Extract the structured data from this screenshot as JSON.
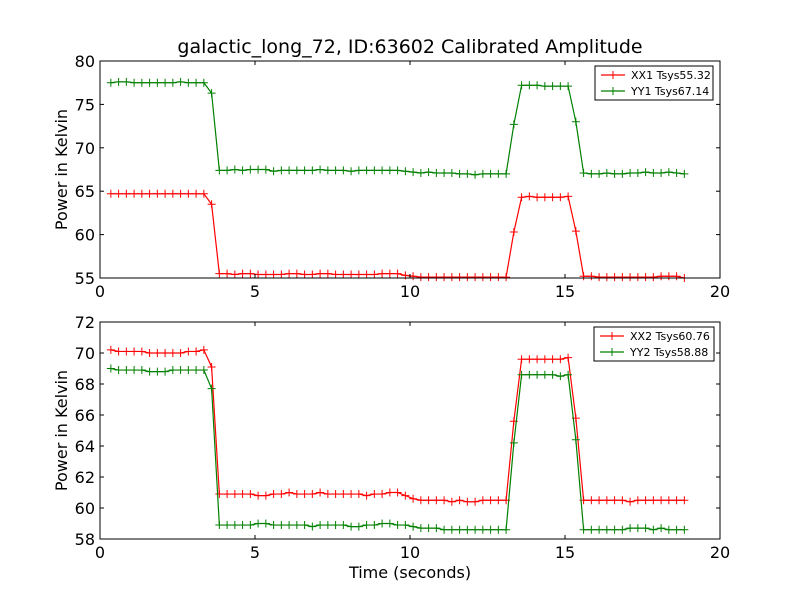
{
  "chart_data": [
    {
      "type": "line",
      "title": "galactic_long_72, ID:63602 Calibrated Amplitude",
      "xlabel": "",
      "ylabel": "Power in Kelvin",
      "xlim": [
        0,
        20
      ],
      "ylim": [
        55,
        80
      ],
      "xticks": [
        0,
        5,
        10,
        15,
        20
      ],
      "yticks": [
        55,
        60,
        65,
        70,
        75,
        80
      ],
      "legend_position": "top-right",
      "series": [
        {
          "name": "XX1 Tsys55.32",
          "color": "#ff0000",
          "x": [
            0.35,
            0.6,
            0.85,
            1.1,
            1.35,
            1.6,
            1.85,
            2.1,
            2.35,
            2.6,
            2.85,
            3.1,
            3.35,
            3.6,
            3.85,
            4.1,
            4.35,
            4.6,
            4.85,
            5.1,
            5.35,
            5.6,
            5.85,
            6.1,
            6.35,
            6.6,
            6.85,
            7.1,
            7.35,
            7.6,
            7.85,
            8.1,
            8.35,
            8.6,
            8.85,
            9.1,
            9.35,
            9.6,
            9.85,
            10.1,
            10.35,
            10.6,
            10.85,
            11.1,
            11.35,
            11.6,
            11.85,
            12.1,
            12.35,
            12.6,
            12.85,
            13.1,
            13.35,
            13.6,
            13.85,
            14.1,
            14.35,
            14.6,
            14.85,
            15.1,
            15.35,
            15.6,
            15.85,
            16.1,
            16.35,
            16.6,
            16.85,
            17.1,
            17.35,
            17.6,
            17.85,
            18.1,
            18.35,
            18.6,
            18.85
          ],
          "y": [
            64.7,
            64.7,
            64.7,
            64.7,
            64.7,
            64.7,
            64.7,
            64.7,
            64.7,
            64.7,
            64.7,
            64.7,
            64.7,
            63.5,
            55.5,
            55.5,
            55.4,
            55.5,
            55.5,
            55.4,
            55.4,
            55.4,
            55.4,
            55.5,
            55.5,
            55.4,
            55.4,
            55.5,
            55.5,
            55.4,
            55.4,
            55.4,
            55.4,
            55.4,
            55.4,
            55.5,
            55.5,
            55.5,
            55.3,
            55.2,
            55.1,
            55.1,
            55.1,
            55.1,
            55.1,
            55.1,
            55.1,
            55.1,
            55.1,
            55.1,
            55.1,
            55.1,
            60.3,
            64.3,
            64.4,
            64.3,
            64.3,
            64.3,
            64.3,
            64.4,
            60.4,
            55.2,
            55.2,
            55.1,
            55.1,
            55.1,
            55.1,
            55.1,
            55.1,
            55.1,
            55.1,
            55.2,
            55.2,
            55.2,
            55.0
          ]
        },
        {
          "name": "YY1 Tsys67.14",
          "color": "#008000",
          "x": [
            0.35,
            0.6,
            0.85,
            1.1,
            1.35,
            1.6,
            1.85,
            2.1,
            2.35,
            2.6,
            2.85,
            3.1,
            3.35,
            3.6,
            3.85,
            4.1,
            4.35,
            4.6,
            4.85,
            5.1,
            5.35,
            5.6,
            5.85,
            6.1,
            6.35,
            6.6,
            6.85,
            7.1,
            7.35,
            7.6,
            7.85,
            8.1,
            8.35,
            8.6,
            8.85,
            9.1,
            9.35,
            9.6,
            9.85,
            10.1,
            10.35,
            10.6,
            10.85,
            11.1,
            11.35,
            11.6,
            11.85,
            12.1,
            12.35,
            12.6,
            12.85,
            13.1,
            13.35,
            13.6,
            13.85,
            14.1,
            14.35,
            14.6,
            14.85,
            15.1,
            15.35,
            15.6,
            15.85,
            16.1,
            16.35,
            16.6,
            16.85,
            17.1,
            17.35,
            17.6,
            17.85,
            18.1,
            18.35,
            18.6,
            18.85
          ],
          "y": [
            77.5,
            77.6,
            77.6,
            77.5,
            77.5,
            77.5,
            77.5,
            77.5,
            77.5,
            77.6,
            77.5,
            77.5,
            77.5,
            76.3,
            67.4,
            67.4,
            67.5,
            67.4,
            67.5,
            67.5,
            67.5,
            67.3,
            67.4,
            67.4,
            67.4,
            67.4,
            67.4,
            67.5,
            67.4,
            67.4,
            67.4,
            67.3,
            67.4,
            67.4,
            67.4,
            67.4,
            67.4,
            67.4,
            67.3,
            67.2,
            67.1,
            67.2,
            67.1,
            67.1,
            67.1,
            67.0,
            67.0,
            66.9,
            67.0,
            67.0,
            67.0,
            67.0,
            72.7,
            77.2,
            77.2,
            77.2,
            77.1,
            77.1,
            77.1,
            77.1,
            73.0,
            67.1,
            67.0,
            67.0,
            67.1,
            67.0,
            67.0,
            67.1,
            67.1,
            67.2,
            67.1,
            67.1,
            67.2,
            67.1,
            67.0
          ]
        }
      ]
    },
    {
      "type": "line",
      "title": "",
      "xlabel": "Time (seconds)",
      "ylabel": "Power in Kelvin",
      "xlim": [
        0,
        20
      ],
      "ylim": [
        58,
        72
      ],
      "xticks": [
        0,
        5,
        10,
        15,
        20
      ],
      "yticks": [
        58,
        60,
        62,
        64,
        66,
        68,
        70,
        72
      ],
      "legend_position": "top-right",
      "series": [
        {
          "name": "XX2 Tsys60.76",
          "color": "#ff0000",
          "x": [
            0.35,
            0.6,
            0.85,
            1.1,
            1.35,
            1.6,
            1.85,
            2.1,
            2.35,
            2.6,
            2.85,
            3.1,
            3.35,
            3.6,
            3.85,
            4.1,
            4.35,
            4.6,
            4.85,
            5.1,
            5.35,
            5.6,
            5.85,
            6.1,
            6.35,
            6.6,
            6.85,
            7.1,
            7.35,
            7.6,
            7.85,
            8.1,
            8.35,
            8.6,
            8.85,
            9.1,
            9.35,
            9.6,
            9.85,
            10.1,
            10.35,
            10.6,
            10.85,
            11.1,
            11.35,
            11.6,
            11.85,
            12.1,
            12.35,
            12.6,
            12.85,
            13.1,
            13.35,
            13.6,
            13.85,
            14.1,
            14.35,
            14.6,
            14.85,
            15.1,
            15.35,
            15.6,
            15.85,
            16.1,
            16.35,
            16.6,
            16.85,
            17.1,
            17.35,
            17.6,
            17.85,
            18.1,
            18.35,
            18.6,
            18.85
          ],
          "y": [
            70.2,
            70.1,
            70.1,
            70.1,
            70.1,
            70.0,
            70.0,
            70.0,
            70.0,
            70.0,
            70.1,
            70.1,
            70.2,
            69.1,
            60.9,
            60.9,
            60.9,
            60.9,
            60.9,
            60.8,
            60.8,
            60.9,
            60.9,
            61.0,
            60.9,
            60.9,
            60.9,
            61.0,
            60.9,
            60.9,
            60.9,
            60.9,
            60.9,
            60.8,
            60.9,
            60.9,
            61.0,
            61.0,
            60.8,
            60.6,
            60.5,
            60.5,
            60.5,
            60.5,
            60.4,
            60.5,
            60.4,
            60.4,
            60.5,
            60.5,
            60.5,
            60.5,
            65.6,
            69.6,
            69.6,
            69.6,
            69.6,
            69.6,
            69.6,
            69.7,
            65.8,
            60.5,
            60.5,
            60.5,
            60.5,
            60.5,
            60.5,
            60.4,
            60.5,
            60.5,
            60.5,
            60.5,
            60.5,
            60.5,
            60.5
          ]
        },
        {
          "name": "YY2 Tsys58.88",
          "color": "#008000",
          "x": [
            0.35,
            0.6,
            0.85,
            1.1,
            1.35,
            1.6,
            1.85,
            2.1,
            2.35,
            2.6,
            2.85,
            3.1,
            3.35,
            3.6,
            3.85,
            4.1,
            4.35,
            4.6,
            4.85,
            5.1,
            5.35,
            5.6,
            5.85,
            6.1,
            6.35,
            6.6,
            6.85,
            7.1,
            7.35,
            7.6,
            7.85,
            8.1,
            8.35,
            8.6,
            8.85,
            9.1,
            9.35,
            9.6,
            9.85,
            10.1,
            10.35,
            10.6,
            10.85,
            11.1,
            11.35,
            11.6,
            11.85,
            12.1,
            12.35,
            12.6,
            12.85,
            13.1,
            13.35,
            13.6,
            13.85,
            14.1,
            14.35,
            14.6,
            14.85,
            15.1,
            15.35,
            15.6,
            15.85,
            16.1,
            16.35,
            16.6,
            16.85,
            17.1,
            17.35,
            17.6,
            17.85,
            18.1,
            18.35,
            18.6,
            18.85
          ],
          "y": [
            69.0,
            68.9,
            68.9,
            68.9,
            68.9,
            68.8,
            68.8,
            68.8,
            68.9,
            68.9,
            68.9,
            68.9,
            68.9,
            67.7,
            58.9,
            58.9,
            58.9,
            58.9,
            58.9,
            59.0,
            59.0,
            58.9,
            58.9,
            58.9,
            58.9,
            58.9,
            58.8,
            58.9,
            58.9,
            58.9,
            58.9,
            58.8,
            58.8,
            58.9,
            58.9,
            59.0,
            59.0,
            58.9,
            58.9,
            58.8,
            58.7,
            58.7,
            58.7,
            58.6,
            58.6,
            58.6,
            58.6,
            58.6,
            58.6,
            58.6,
            58.6,
            58.6,
            64.2,
            68.6,
            68.6,
            68.6,
            68.6,
            68.6,
            68.5,
            68.6,
            64.4,
            58.6,
            58.6,
            58.6,
            58.6,
            58.6,
            58.6,
            58.7,
            58.7,
            58.7,
            58.6,
            58.7,
            58.6,
            58.6,
            58.6
          ]
        }
      ]
    }
  ]
}
